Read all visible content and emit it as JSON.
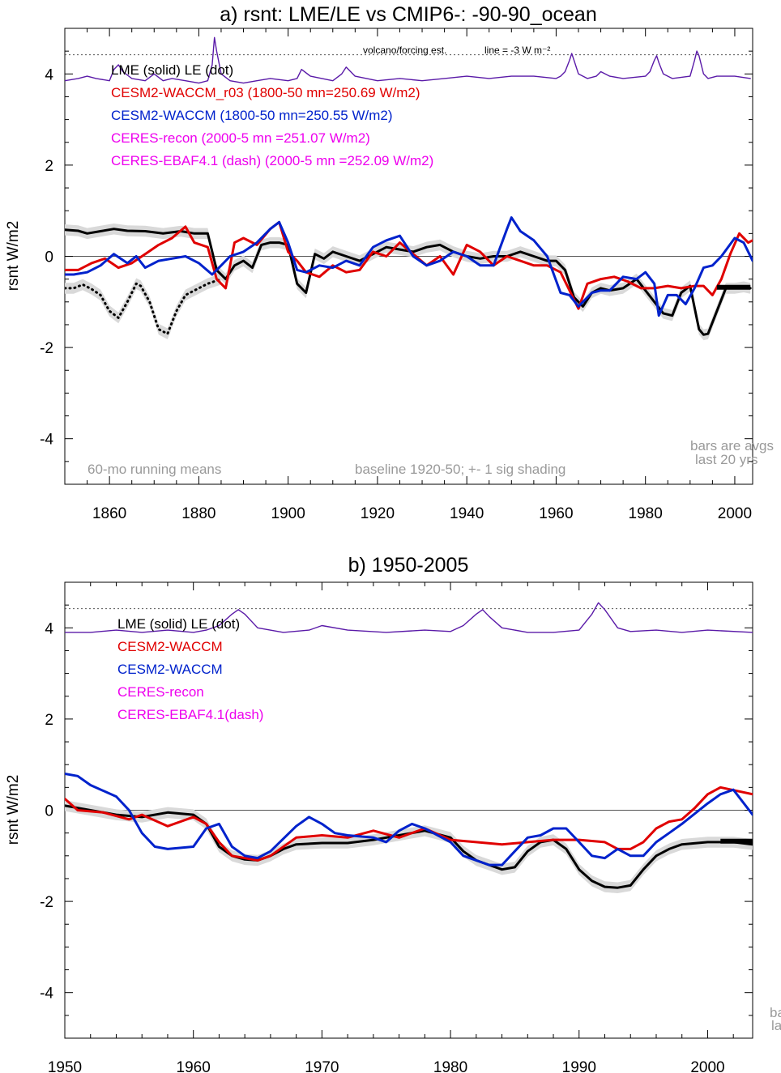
{
  "chart_data": [
    {
      "type": "line",
      "title": "a) rsnt: LME/LE vs CMIP6-: -90-90_ocean",
      "ylabel": "rsnt W/m2",
      "xlim": [
        1850,
        2004
      ],
      "ylim": [
        -5,
        5
      ],
      "xticks": [
        1860,
        1880,
        1900,
        1920,
        1940,
        1960,
        1980,
        2000
      ],
      "yticks": [
        -4,
        -2,
        0,
        2,
        4
      ],
      "grid": false,
      "legend": [
        {
          "text": "LME (solid)   LE (dot)",
          "color": "#000000"
        },
        {
          "text": "CESM2-WACCM_r03 (1800-50 mn=250.69 W/m2)",
          "color": "#e00000"
        },
        {
          "text": "CESM2-WACCM (1800-50 mn=250.55 W/m2)",
          "color": "#0022cc"
        },
        {
          "text": "CERES-recon (2000-5 mn =251.07 W/m2)",
          "color": "#ee00ee"
        },
        {
          "text": "CERES-EBAF4.1 (dash) (2000-5 mn =252.09 W/m2)",
          "color": "#ee00ee"
        }
      ],
      "annotations": {
        "volcano": "volcano/forcing est.",
        "line_note": "line = -3 W m⁻²",
        "running": "60-mo running means",
        "baseline": "baseline 1920-50; +- 1 sig shading",
        "bars1": "bars are avgs",
        "bars2": "last 20 yrs"
      },
      "series": [
        {
          "name": "LME (solid)",
          "color": "#000000",
          "dash": "solid",
          "shade": true,
          "x": [
            1850,
            1853,
            1855,
            1858,
            1861,
            1864,
            1868,
            1872,
            1876,
            1879,
            1882,
            1884,
            1886,
            1888,
            1890,
            1892,
            1894,
            1896,
            1898,
            1900,
            1902,
            1904,
            1906,
            1908,
            1910,
            1913,
            1916,
            1919,
            1922,
            1925,
            1928,
            1931,
            1934,
            1937,
            1940,
            1943,
            1946,
            1949,
            1952,
            1955,
            1958,
            1960,
            1962,
            1964,
            1966,
            1968,
            1970,
            1972,
            1975,
            1978,
            1980,
            1982,
            1984,
            1986,
            1988,
            1990,
            1992,
            1993,
            1994,
            1996,
            1998,
            2000,
            2002,
            2003.5
          ],
          "y": [
            0.58,
            0.56,
            0.5,
            0.55,
            0.6,
            0.56,
            0.55,
            0.5,
            0.55,
            0.5,
            0.5,
            -0.3,
            -0.5,
            -0.2,
            -0.1,
            -0.25,
            0.25,
            0.3,
            0.3,
            0.25,
            -0.6,
            -0.8,
            0.05,
            -0.05,
            0.1,
            0.0,
            -0.1,
            0.05,
            0.2,
            0.15,
            0.1,
            0.2,
            0.25,
            0.1,
            0.0,
            -0.05,
            0.0,
            0.0,
            0.1,
            0.0,
            -0.1,
            -0.1,
            -0.3,
            -0.9,
            -1.1,
            -0.8,
            -0.7,
            -0.75,
            -0.7,
            -0.5,
            -0.75,
            -1.0,
            -1.25,
            -1.3,
            -0.8,
            -0.65,
            -1.6,
            -1.72,
            -1.7,
            -1.2,
            -0.7,
            -0.7,
            -0.67,
            -0.7
          ]
        },
        {
          "name": "LE (dot)",
          "color": "#000000",
          "dash": "dot",
          "shade": true,
          "x": [
            1850,
            1852,
            1854,
            1856,
            1858,
            1860,
            1862,
            1864,
            1866,
            1867,
            1869,
            1871,
            1873,
            1875,
            1877,
            1879,
            1882,
            1885
          ],
          "y": [
            -0.7,
            -0.7,
            -0.62,
            -0.72,
            -0.85,
            -1.2,
            -1.35,
            -1.0,
            -0.6,
            -0.65,
            -1.0,
            -1.6,
            -1.7,
            -1.2,
            -0.85,
            -0.75,
            -0.6,
            -0.5
          ]
        },
        {
          "name": "CESM2-WACCM_r03",
          "color": "#e00000",
          "dash": "solid",
          "x": [
            1850,
            1853,
            1856,
            1859,
            1862,
            1865,
            1868,
            1871,
            1874,
            1877,
            1879,
            1882,
            1884,
            1886,
            1888,
            1890,
            1893,
            1896,
            1898,
            1900,
            1902,
            1904,
            1907,
            1910,
            1913,
            1916,
            1919,
            1922,
            1925,
            1928,
            1931,
            1934,
            1937,
            1940,
            1943,
            1946,
            1949,
            1952,
            1955,
            1958,
            1961,
            1963,
            1965,
            1967,
            1970,
            1973,
            1976,
            1979,
            1982,
            1985,
            1988,
            1991,
            1993,
            1995,
            1997,
            1999,
            2001,
            2003,
            2004
          ],
          "y": [
            -0.3,
            -0.3,
            -0.15,
            -0.05,
            -0.25,
            -0.15,
            0.05,
            0.25,
            0.4,
            0.65,
            0.3,
            0.2,
            -0.5,
            -0.7,
            0.3,
            0.4,
            0.25,
            0.6,
            0.75,
            0.1,
            -0.1,
            -0.35,
            -0.45,
            -0.2,
            -0.35,
            -0.3,
            0.1,
            0.0,
            0.3,
            0.05,
            -0.2,
            0.0,
            -0.4,
            0.25,
            0.1,
            -0.2,
            0.0,
            -0.1,
            -0.2,
            -0.2,
            -0.35,
            -0.75,
            -1.15,
            -0.6,
            -0.5,
            -0.45,
            -0.55,
            -0.7,
            -0.7,
            -0.65,
            -0.7,
            -0.65,
            -0.65,
            -0.85,
            -0.5,
            0.05,
            0.5,
            0.3,
            0.35
          ]
        },
        {
          "name": "CESM2-WACCM",
          "color": "#0022cc",
          "dash": "solid",
          "x": [
            1850,
            1852,
            1855,
            1858,
            1861,
            1864,
            1866,
            1868,
            1871,
            1874,
            1877,
            1880,
            1883,
            1885,
            1887,
            1890,
            1893,
            1896,
            1898,
            1900,
            1902,
            1904,
            1907,
            1910,
            1913,
            1916,
            1919,
            1922,
            1925,
            1928,
            1931,
            1934,
            1937,
            1940,
            1943,
            1946,
            1949,
            1950,
            1952,
            1955,
            1958,
            1961,
            1963,
            1965,
            1968,
            1970,
            1972,
            1975,
            1978,
            1980,
            1982,
            1983,
            1985,
            1987,
            1989,
            1991,
            1993,
            1995,
            1997,
            2000,
            2002,
            2004
          ],
          "y": [
            -0.4,
            -0.4,
            -0.35,
            -0.2,
            0.05,
            -0.15,
            0.0,
            -0.25,
            -0.1,
            -0.05,
            0.0,
            -0.15,
            -0.4,
            -0.2,
            0.0,
            0.1,
            0.3,
            0.6,
            0.75,
            0.3,
            -0.3,
            -0.35,
            -0.2,
            -0.25,
            -0.1,
            -0.2,
            0.2,
            0.35,
            0.45,
            0.0,
            -0.2,
            -0.1,
            0.1,
            0.0,
            -0.2,
            -0.2,
            0.6,
            0.85,
            0.55,
            0.35,
            0.0,
            -0.8,
            -0.85,
            -1.1,
            -0.8,
            -0.75,
            -0.75,
            -0.45,
            -0.5,
            -0.35,
            -0.6,
            -1.3,
            -0.85,
            -0.85,
            -1.05,
            -0.7,
            -0.25,
            -0.2,
            0.0,
            0.4,
            0.3,
            -0.1
          ]
        },
        {
          "name": "volcano/forcing est.",
          "color": "#5a1aa8",
          "dash": "solid",
          "thin": true,
          "x": [
            1850,
            1853,
            1855,
            1857,
            1860,
            1861,
            1862,
            1863,
            1865,
            1868,
            1870,
            1872,
            1874,
            1877,
            1880,
            1882,
            1883,
            1883.5,
            1884,
            1885,
            1887,
            1890,
            1893,
            1896,
            1900,
            1902,
            1903,
            1905,
            1910,
            1912,
            1913,
            1915,
            1920,
            1925,
            1930,
            1935,
            1940,
            1945,
            1950,
            1955,
            1960,
            1961,
            1962,
            1963,
            1963.5,
            1964,
            1965,
            1967,
            1969,
            1970,
            1972,
            1975,
            1980,
            1981,
            1982,
            1982.5,
            1983,
            1984,
            1986,
            1990,
            1991,
            1991.5,
            1992,
            1993,
            1994,
            1996,
            2000,
            2003.5
          ],
          "y": [
            3.85,
            3.9,
            3.95,
            3.9,
            3.85,
            4.1,
            4.2,
            4.05,
            3.9,
            3.85,
            4.0,
            3.85,
            3.9,
            3.85,
            3.8,
            3.85,
            4.2,
            4.8,
            4.5,
            4.0,
            3.85,
            3.8,
            3.85,
            3.9,
            3.85,
            3.9,
            4.1,
            3.95,
            3.85,
            4.0,
            4.15,
            3.95,
            3.85,
            3.9,
            3.85,
            3.9,
            3.95,
            3.9,
            3.95,
            3.95,
            3.9,
            3.95,
            4.05,
            4.3,
            4.45,
            4.3,
            4.0,
            3.9,
            3.95,
            4.05,
            3.95,
            3.9,
            3.95,
            4.05,
            4.3,
            4.4,
            4.25,
            4.0,
            3.9,
            3.95,
            4.3,
            4.5,
            4.4,
            4.0,
            3.9,
            3.95,
            3.95,
            3.9
          ]
        }
      ],
      "bars": [
        {
          "color": "#000000",
          "x0": 1996,
          "x1": 2003.5,
          "y": -0.68
        }
      ]
    },
    {
      "type": "line",
      "title": "b) 1950-2005",
      "ylabel": "rsnt W/m2",
      "xlim": [
        1950,
        2003.5
      ],
      "ylim": [
        -5,
        5
      ],
      "xticks": [
        1950,
        1960,
        1970,
        1980,
        1990,
        2000
      ],
      "yticks": [
        -4,
        -2,
        0,
        2,
        4
      ],
      "grid": false,
      "legend": [
        {
          "text": "LME (solid)      LE (dot)",
          "color": "#000000"
        },
        {
          "text": "CESM2-WACCM",
          "color": "#e00000"
        },
        {
          "text": "CESM2-WACCM",
          "color": "#0022cc"
        },
        {
          "text": "CERES-recon",
          "color": "#ee00ee"
        },
        {
          "text": "CERES-EBAF4.1(dash)",
          "color": "#ee00ee"
        }
      ],
      "annotations": {
        "bars1": "ba",
        "bars2": "la"
      },
      "series": [
        {
          "name": "LME (solid)",
          "color": "#000000",
          "dash": "solid",
          "shade": true,
          "x": [
            1950,
            1952,
            1954,
            1956,
            1958,
            1960,
            1961,
            1962,
            1963,
            1964,
            1965,
            1966,
            1967,
            1968,
            1970,
            1972,
            1974,
            1976,
            1978,
            1980,
            1981,
            1982,
            1983,
            1984,
            1985,
            1986,
            1987,
            1988,
            1989,
            1990,
            1991,
            1992,
            1993,
            1994,
            1995,
            1996,
            1997,
            1998,
            2000,
            2002,
            2003.5
          ],
          "y": [
            0.1,
            0.0,
            -0.1,
            -0.15,
            -0.05,
            -0.1,
            -0.3,
            -0.8,
            -1.0,
            -1.08,
            -1.1,
            -1.0,
            -0.85,
            -0.75,
            -0.72,
            -0.72,
            -0.65,
            -0.55,
            -0.45,
            -0.6,
            -0.9,
            -1.1,
            -1.2,
            -1.3,
            -1.25,
            -0.9,
            -0.7,
            -0.65,
            -0.85,
            -1.3,
            -1.55,
            -1.68,
            -1.7,
            -1.65,
            -1.3,
            -1.0,
            -0.85,
            -0.75,
            -0.7,
            -0.7,
            -0.75
          ]
        },
        {
          "name": "CESM2-WACCM_r03",
          "color": "#e00000",
          "dash": "solid",
          "x": [
            1950,
            1951,
            1953,
            1955,
            1956,
            1958,
            1960,
            1961,
            1962,
            1963,
            1965,
            1966,
            1968,
            1970,
            1972,
            1974,
            1976,
            1978,
            1980,
            1982,
            1984,
            1986,
            1988,
            1990,
            1992,
            1993,
            1994,
            1995,
            1996,
            1997,
            1998,
            1999,
            2000,
            2001,
            2003.5
          ],
          "y": [
            0.25,
            0.0,
            -0.05,
            -0.2,
            -0.1,
            -0.35,
            -0.15,
            -0.3,
            -0.7,
            -1.0,
            -1.1,
            -1.0,
            -0.6,
            -0.55,
            -0.6,
            -0.45,
            -0.6,
            -0.4,
            -0.65,
            -0.7,
            -0.75,
            -0.7,
            -0.65,
            -0.65,
            -0.7,
            -0.85,
            -0.85,
            -0.7,
            -0.4,
            -0.25,
            -0.2,
            0.05,
            0.35,
            0.5,
            0.35
          ]
        },
        {
          "name": "CESM2-WACCM",
          "color": "#0022cc",
          "dash": "solid",
          "x": [
            1950,
            1951,
            1952,
            1954,
            1955,
            1956,
            1957,
            1958,
            1960,
            1961,
            1962,
            1963,
            1964,
            1965,
            1966,
            1968,
            1969,
            1970,
            1971,
            1972,
            1974,
            1975,
            1976,
            1977,
            1978,
            1980,
            1981,
            1982,
            1983,
            1984,
            1985,
            1986,
            1987,
            1988,
            1989,
            1990,
            1991,
            1992,
            1993,
            1994,
            1995,
            1996,
            1997,
            1998,
            2000,
            2001,
            2002,
            2003.5
          ],
          "y": [
            0.8,
            0.75,
            0.55,
            0.3,
            0.0,
            -0.5,
            -0.8,
            -0.85,
            -0.8,
            -0.4,
            -0.3,
            -0.8,
            -1.0,
            -1.05,
            -0.9,
            -0.35,
            -0.15,
            -0.3,
            -0.5,
            -0.55,
            -0.6,
            -0.7,
            -0.45,
            -0.3,
            -0.4,
            -0.7,
            -1.0,
            -1.1,
            -1.2,
            -1.2,
            -0.9,
            -0.6,
            -0.55,
            -0.4,
            -0.4,
            -0.7,
            -1.0,
            -1.05,
            -0.85,
            -1.0,
            -1.0,
            -0.7,
            -0.5,
            -0.3,
            0.15,
            0.35,
            0.45,
            -0.1
          ]
        },
        {
          "name": "volcano/forcing est.",
          "color": "#5a1aa8",
          "dash": "solid",
          "thin": true,
          "x": [
            1950,
            1952,
            1954,
            1956,
            1958,
            1960,
            1961,
            1962,
            1963,
            1963.5,
            1964,
            1965,
            1967,
            1969,
            1970,
            1972,
            1975,
            1978,
            1980,
            1981,
            1982,
            1982.5,
            1983,
            1984,
            1986,
            1988,
            1990,
            1991,
            1991.5,
            1992,
            1993,
            1994,
            1996,
            1998,
            2000,
            2003.5
          ],
          "y": [
            3.9,
            3.9,
            3.95,
            3.9,
            3.95,
            3.9,
            3.95,
            4.05,
            4.3,
            4.4,
            4.3,
            4.0,
            3.9,
            3.95,
            4.05,
            3.95,
            3.9,
            3.95,
            3.92,
            4.05,
            4.3,
            4.4,
            4.25,
            4.0,
            3.9,
            3.9,
            3.95,
            4.3,
            4.55,
            4.4,
            4.0,
            3.92,
            3.95,
            3.9,
            3.95,
            3.9
          ]
        }
      ],
      "bars": [
        {
          "color": "#000000",
          "x0": 2001,
          "x1": 2003.5,
          "y": -0.68
        }
      ]
    }
  ]
}
